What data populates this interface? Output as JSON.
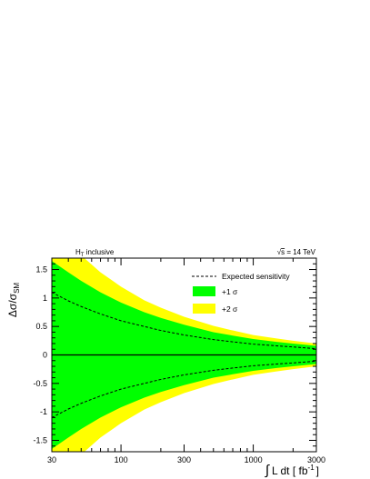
{
  "chart_data": {
    "type": "area",
    "title": "",
    "header_left": {
      "main": "H",
      "sub": "T",
      "rest": " inclusive"
    },
    "header_right": {
      "sqrt": "s",
      "rest": " = 14 TeV"
    },
    "xlabel": {
      "integral": "∫",
      "text": "L dt [ fb",
      "sup": "-1",
      "close": "]"
    },
    "ylabel": {
      "main": "Δσ/σ",
      "sub": "SM"
    },
    "xscale": "log",
    "xlim": [
      30,
      3000
    ],
    "ylim": [
      -1.7,
      1.7
    ],
    "x_ticks": [
      30,
      100,
      300,
      1000,
      3000
    ],
    "x_tick_labels": [
      "30",
      "100",
      "300",
      "1000",
      "3000"
    ],
    "y_ticks": [
      -1.5,
      -1,
      -0.5,
      0,
      0.5,
      1,
      1.5
    ],
    "y_tick_labels": [
      "-1.5",
      "-1",
      "-0.5",
      "0",
      "0.5",
      "1",
      "1.5"
    ],
    "x": [
      30,
      40,
      50,
      70,
      100,
      150,
      200,
      300,
      500,
      700,
      1000,
      1500,
      2000,
      3000
    ],
    "series": [
      {
        "name": "Expected sensitivity",
        "style": "dashed",
        "color": "#000000",
        "upper": [
          1.1,
          0.95,
          0.85,
          0.72,
          0.6,
          0.5,
          0.43,
          0.35,
          0.27,
          0.23,
          0.19,
          0.16,
          0.14,
          0.11
        ],
        "lower": [
          -1.1,
          -0.95,
          -0.85,
          -0.72,
          -0.6,
          -0.5,
          -0.43,
          -0.35,
          -0.27,
          -0.23,
          -0.19,
          -0.16,
          -0.14,
          -0.11
        ]
      },
      {
        "name": "+1 σ",
        "style": "band",
        "color": "#00ff00",
        "upper": [
          1.65,
          1.45,
          1.3,
          1.1,
          0.92,
          0.75,
          0.65,
          0.53,
          0.4,
          0.34,
          0.28,
          0.23,
          0.2,
          0.16
        ],
        "lower": [
          -1.65,
          -1.45,
          -1.3,
          -1.1,
          -0.92,
          -0.75,
          -0.65,
          -0.53,
          -0.4,
          -0.34,
          -0.28,
          -0.23,
          -0.2,
          -0.16
        ]
      },
      {
        "name": "+2 σ",
        "style": "band",
        "color": "#ffff00",
        "upper": [
          2.4,
          2.0,
          1.75,
          1.45,
          1.2,
          0.96,
          0.83,
          0.67,
          0.51,
          0.43,
          0.35,
          0.29,
          0.25,
          0.2
        ],
        "lower": [
          -2.4,
          -2.0,
          -1.75,
          -1.45,
          -1.2,
          -0.96,
          -0.83,
          -0.67,
          -0.51,
          -0.43,
          -0.35,
          -0.29,
          -0.25,
          -0.2
        ]
      }
    ],
    "zero_line": 0,
    "grid": false,
    "legend_position": "top-right"
  }
}
